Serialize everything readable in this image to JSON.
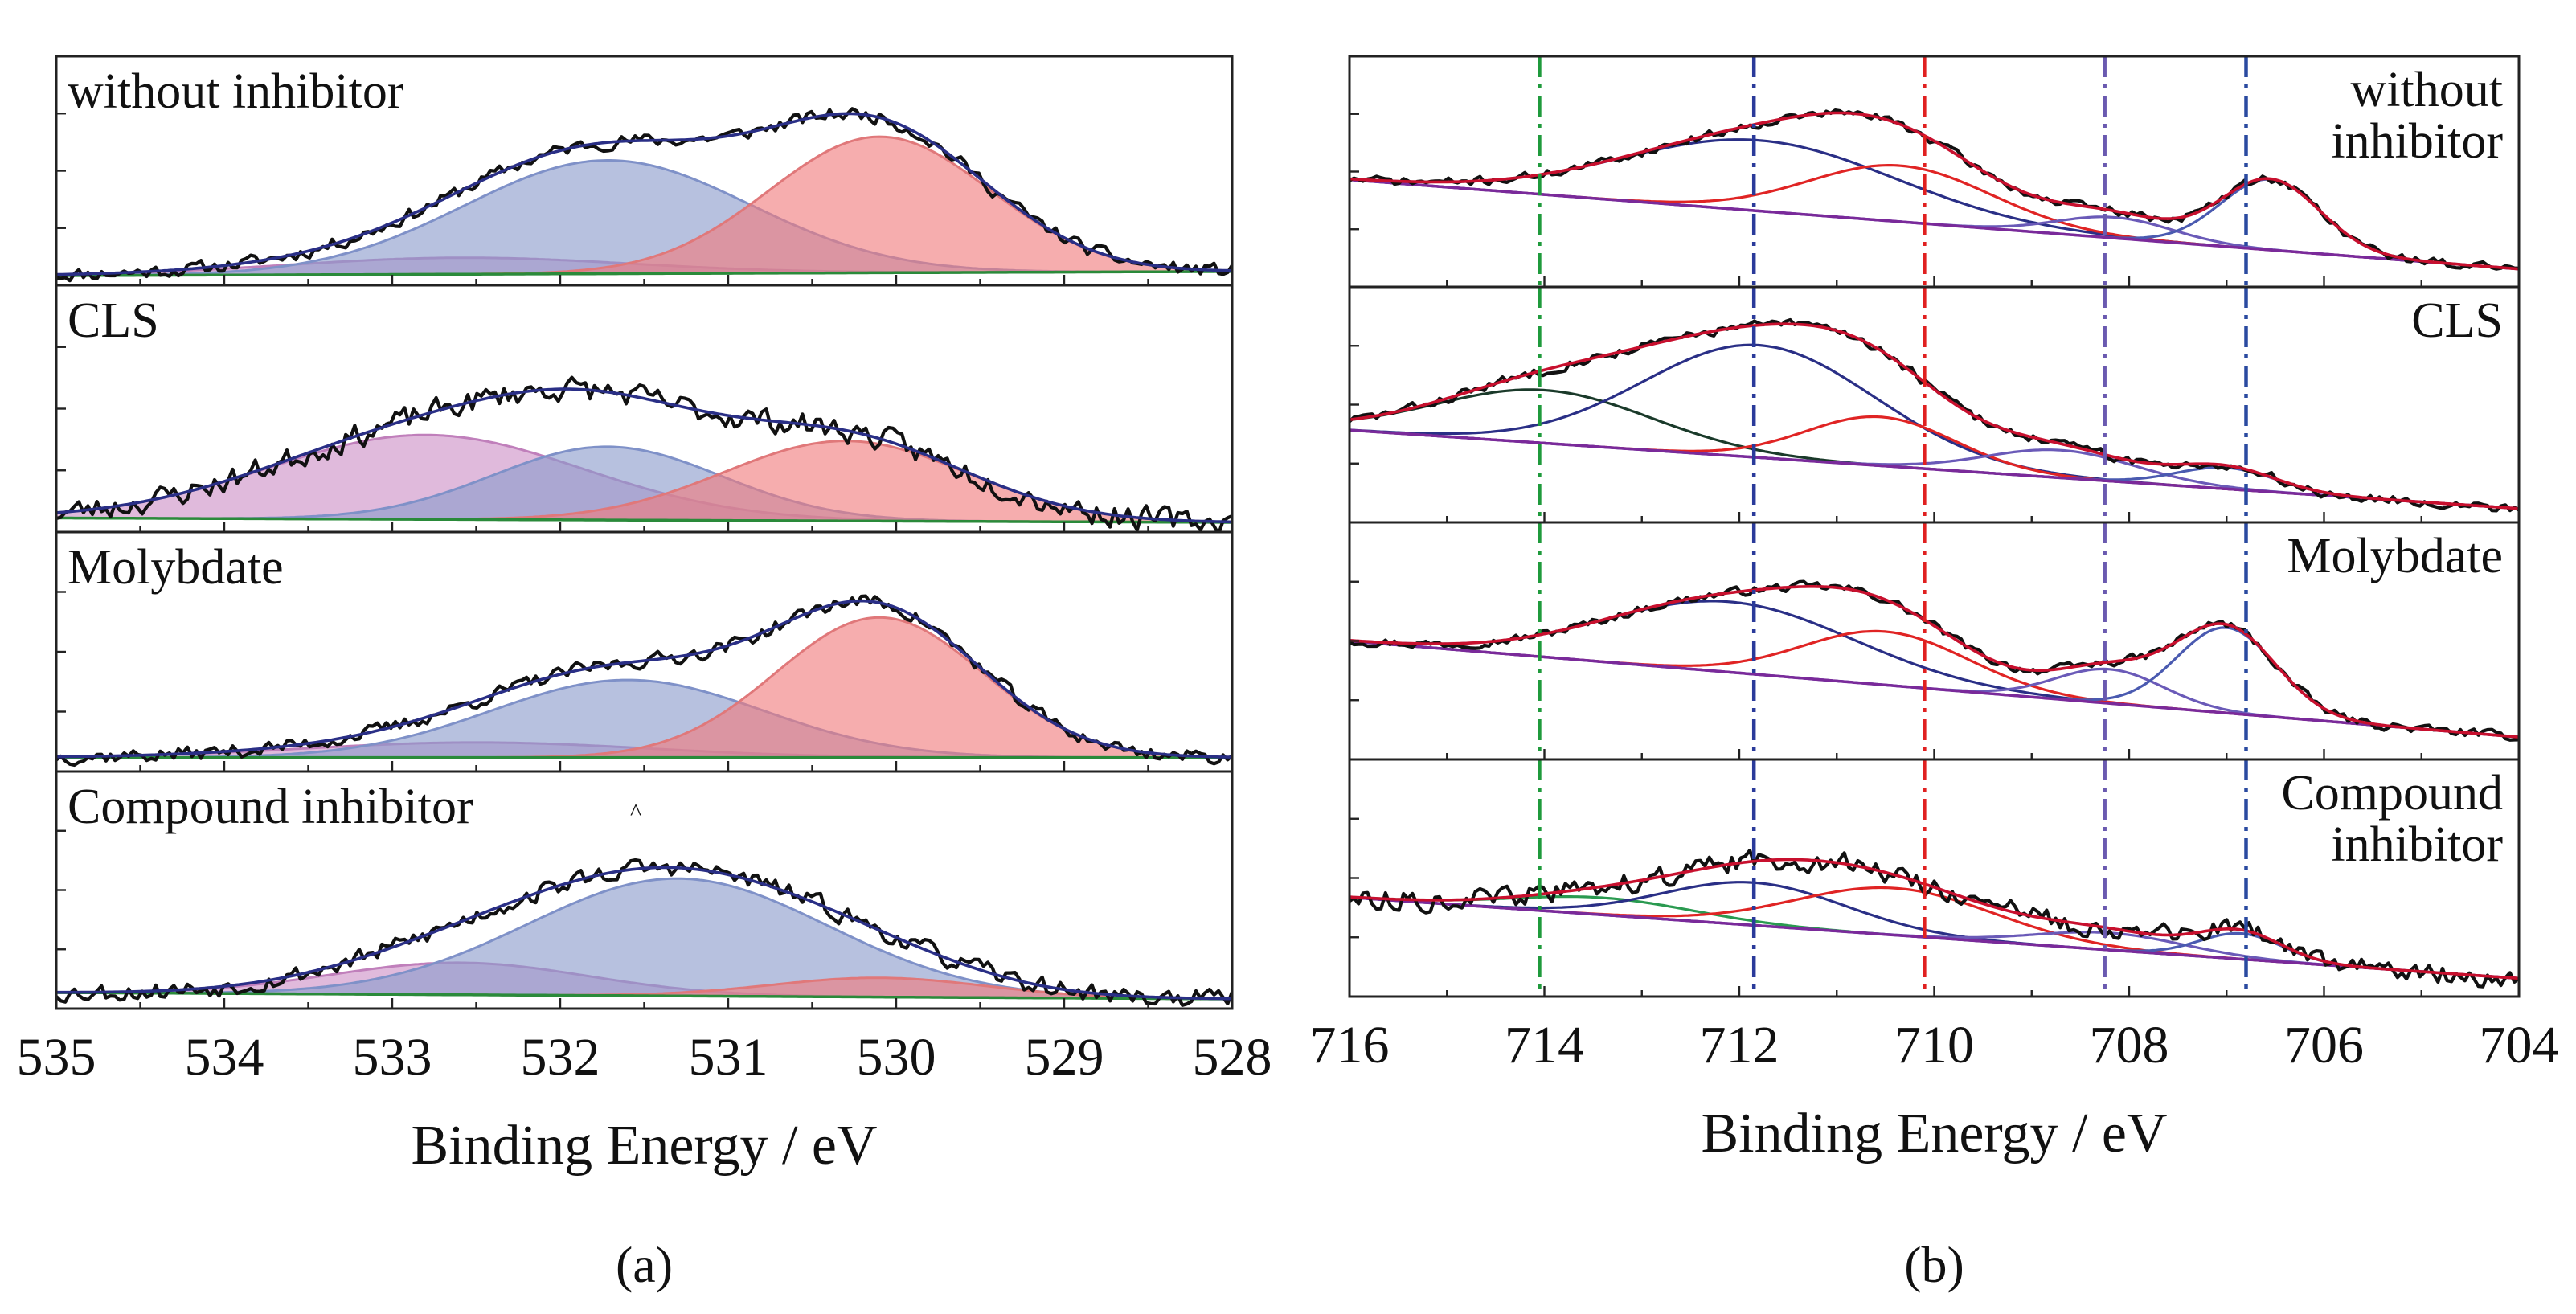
{
  "figure": {
    "captions": [
      "(a)",
      "(b)"
    ]
  },
  "chart_data": [
    {
      "type": "area",
      "id": "a",
      "caption": "(a)",
      "title": "",
      "xlabel": "Binding Energy / eV",
      "ylabel": "",
      "xlim": [
        535,
        528
      ],
      "x_reversed": true,
      "xticks": [
        535,
        534,
        533,
        532,
        531,
        530,
        529,
        528
      ],
      "grid": false,
      "legend": "none",
      "colors": {
        "raw": "#111111",
        "envelope": "#2a2f86",
        "background": "#2a8a3a",
        "blue_fill": "#8a9bcc",
        "blue_line": "#7f91c8",
        "red_fill": "#f07a7c",
        "red_line": "#e0787a",
        "pink_fill": "#cd8fc7",
        "pink_line": "#c07fbb"
      },
      "panels": [
        {
          "label": "without inhibitor",
          "label_pos": "top-left",
          "baseline": [
            0.0,
            0.02
          ],
          "noise": 0.03,
          "seed": 11,
          "peaks": [
            {
              "name": "pink",
              "center": 532.6,
              "height": 0.08,
              "fwhm": 2.4
            },
            {
              "name": "blue",
              "center": 531.72,
              "height": 0.55,
              "fwhm": 2.0
            },
            {
              "name": "red",
              "center": 530.1,
              "height": 0.66,
              "fwhm": 1.55
            }
          ]
        },
        {
          "label": "CLS",
          "label_pos": "top-left",
          "baseline": [
            0.02,
            0.0
          ],
          "noise": 0.05,
          "seed": 23,
          "peaks": [
            {
              "name": "pink",
              "center": 532.8,
              "height": 0.38,
              "fwhm": 2.2
            },
            {
              "name": "blue",
              "center": 531.72,
              "height": 0.33,
              "fwhm": 1.6
            },
            {
              "name": "red",
              "center": 530.3,
              "height": 0.36,
              "fwhm": 1.7
            }
          ]
        },
        {
          "label": "Molybdate",
          "label_pos": "top-left",
          "baseline": [
            0.02,
            0.02
          ],
          "noise": 0.03,
          "seed": 37,
          "peaks": [
            {
              "name": "pink",
              "center": 532.5,
              "height": 0.07,
              "fwhm": 2.4
            },
            {
              "name": "blue",
              "center": 531.6,
              "height": 0.36,
              "fwhm": 1.9
            },
            {
              "name": "red",
              "center": 530.1,
              "height": 0.65,
              "fwhm": 1.45
            }
          ]
        },
        {
          "label": "Compound inhibitor",
          "label_pos": "top-left",
          "baseline": [
            0.03,
            0.0
          ],
          "noise": 0.04,
          "seed": 53,
          "marker_text": "^",
          "marker_x": 531.55,
          "peaks": [
            {
              "name": "pink",
              "center": 532.6,
              "height": 0.15,
              "fwhm": 1.8
            },
            {
              "name": "blue",
              "center": 531.3,
              "height": 0.55,
              "fwhm": 2.1
            },
            {
              "name": "red",
              "center": 530.1,
              "height": 0.09,
              "fwhm": 1.5
            }
          ]
        }
      ]
    },
    {
      "type": "line",
      "id": "b",
      "caption": "(b)",
      "title": "",
      "xlabel": "Binding Energy / eV",
      "ylabel": "",
      "xlim": [
        716,
        704
      ],
      "x_reversed": true,
      "xticks": [
        716,
        714,
        712,
        710,
        708,
        706,
        704
      ],
      "grid": false,
      "legend": "none",
      "reference_lines": [
        {
          "x": 714.05,
          "color": "#1f9a3c"
        },
        {
          "x": 711.85,
          "color": "#2a3a9a"
        },
        {
          "x": 710.1,
          "color": "#e02020"
        },
        {
          "x": 708.25,
          "color": "#6a5ab0"
        },
        {
          "x": 706.8,
          "color": "#2a4aa0"
        }
      ],
      "colors": {
        "raw": "#111111",
        "envelope": "#c8102e",
        "background": "#7a2a9a",
        "fe2": "#2a2f86",
        "fe3": "#e02424",
        "sat": "#6a5ab8",
        "fe0": "#4a5ab0",
        "extra_green": "#2a9a50",
        "extra_dark": "#1a3a2a"
      },
      "panels": [
        {
          "label": [
            "without",
            "inhibitor"
          ],
          "label_pos": "top-right",
          "baseline": [
            0.47,
            0.04
          ],
          "noise": 0.018,
          "seed": 71,
          "peaks": [
            {
              "name": "fe2",
              "center": 711.8,
              "height": 0.34,
              "fwhm": 3.3
            },
            {
              "name": "fe3",
              "center": 710.35,
              "height": 0.27,
              "fwhm": 2.2
            },
            {
              "name": "sat",
              "center": 708.15,
              "height": 0.1,
              "fwhm": 1.4
            },
            {
              "name": "fe0",
              "center": 706.55,
              "height": 0.34,
              "fwhm": 1.2
            }
          ]
        },
        {
          "label": [
            "CLS"
          ],
          "label_pos": "top-right",
          "baseline": [
            0.39,
            0.02
          ],
          "noise": 0.02,
          "seed": 83,
          "peaks": [
            {
              "name": "extra_dark",
              "center": 714.0,
              "height": 0.25,
              "fwhm": 2.6
            },
            {
              "name": "fe2",
              "center": 711.8,
              "height": 0.53,
              "fwhm": 2.8
            },
            {
              "name": "fe3",
              "center": 710.55,
              "height": 0.23,
              "fwhm": 1.8
            },
            {
              "name": "sat",
              "center": 708.7,
              "height": 0.13,
              "fwhm": 1.8
            },
            {
              "name": "fe0",
              "center": 707.0,
              "height": 0.1,
              "fwhm": 1.2
            }
          ]
        },
        {
          "label": [
            "Molybdate"
          ],
          "label_pos": "top-right",
          "baseline": [
            0.51,
            0.06
          ],
          "noise": 0.018,
          "seed": 97,
          "peaks": [
            {
              "name": "fe2",
              "center": 712.1,
              "height": 0.33,
              "fwhm": 3.0
            },
            {
              "name": "fe3",
              "center": 710.5,
              "height": 0.25,
              "fwhm": 2.0
            },
            {
              "name": "sat",
              "center": 708.2,
              "height": 0.16,
              "fwhm": 1.3
            },
            {
              "name": "fe0",
              "center": 707.0,
              "height": 0.4,
              "fwhm": 1.2
            }
          ]
        },
        {
          "label": [
            "Compound",
            "inhibitor"
          ],
          "label_pos": "top-right",
          "baseline": [
            0.42,
            0.04
          ],
          "noise": 0.045,
          "seed": 113,
          "peaks": [
            {
              "name": "extra_green",
              "center": 713.4,
              "height": 0.08,
              "fwhm": 2.2
            },
            {
              "name": "fe2",
              "center": 711.85,
              "height": 0.2,
              "fwhm": 2.2
            },
            {
              "name": "fe3",
              "center": 710.4,
              "height": 0.22,
              "fwhm": 2.4
            },
            {
              "name": "sat",
              "center": 708.2,
              "height": 0.08,
              "fwhm": 1.8
            },
            {
              "name": "fe0",
              "center": 706.85,
              "height": 0.12,
              "fwhm": 1.0
            }
          ]
        }
      ]
    }
  ]
}
